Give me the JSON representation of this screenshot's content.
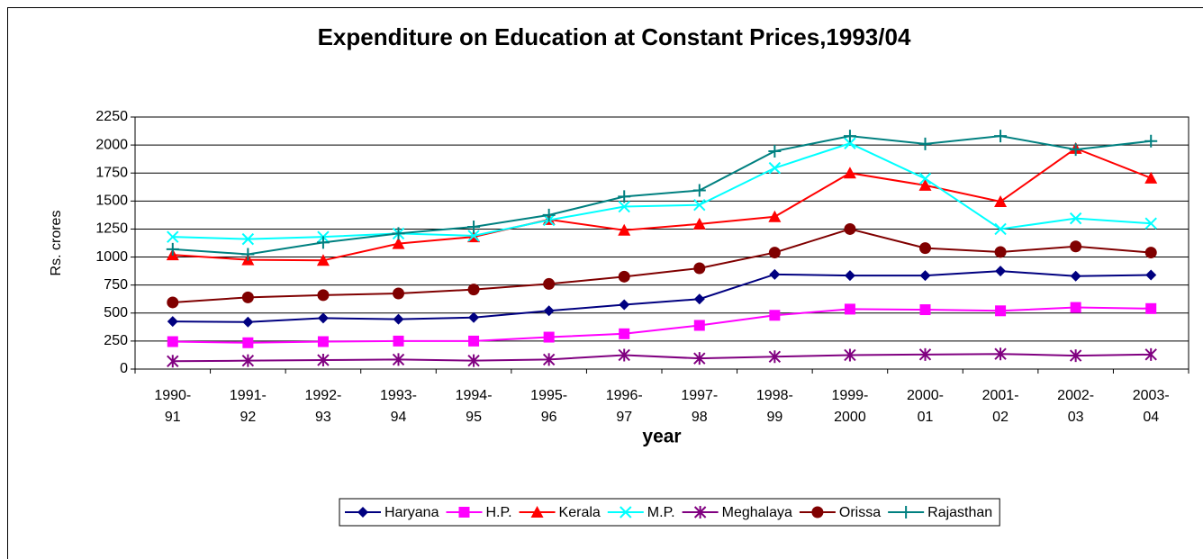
{
  "chart_data": {
    "type": "line",
    "title": "Expenditure on Education at Constant Prices,1993/04",
    "x_label": "year",
    "y_label": "Rs. crores",
    "categories": [
      "1990-91",
      "1991-92",
      "1992-93",
      "1993-94",
      "1994-95",
      "1995-96",
      "1996-97",
      "1997-98",
      "1998-99",
      "1999-2000",
      "2000-01",
      "2001-02",
      "2002-03",
      "2003-04"
    ],
    "ylim": [
      0,
      2250
    ],
    "yticks": [
      0,
      250,
      500,
      750,
      1000,
      1250,
      1500,
      1750,
      2000,
      2250
    ],
    "grid": true,
    "legend": "bottom",
    "series": [
      {
        "name": "Haryana",
        "color": "#000080",
        "marker": "diamond",
        "values": [
          425,
          420,
          455,
          445,
          460,
          520,
          575,
          625,
          845,
          835,
          835,
          875,
          830,
          840
        ]
      },
      {
        "name": "H.P.",
        "color": "#ff00ff",
        "marker": "square",
        "values": [
          245,
          235,
          245,
          250,
          250,
          285,
          315,
          390,
          480,
          535,
          530,
          520,
          550,
          540
        ]
      },
      {
        "name": "Kerala",
        "color": "#ff0000",
        "marker": "triangle",
        "values": [
          1020,
          975,
          970,
          1120,
          1180,
          1335,
          1240,
          1295,
          1360,
          1750,
          1640,
          1495,
          1970,
          1705
        ]
      },
      {
        "name": "M.P.",
        "color": "#00ffff",
        "marker": "x",
        "values": [
          1180,
          1160,
          1180,
          1210,
          1190,
          1330,
          1450,
          1465,
          1795,
          2015,
          1700,
          1250,
          1345,
          1300
        ]
      },
      {
        "name": "Meghalaya",
        "color": "#800080",
        "marker": "asterisk",
        "values": [
          70,
          75,
          80,
          85,
          75,
          85,
          125,
          95,
          110,
          125,
          130,
          135,
          120,
          130
        ]
      },
      {
        "name": "Orissa",
        "color": "#800000",
        "marker": "circle",
        "values": [
          595,
          640,
          660,
          675,
          710,
          760,
          825,
          900,
          1040,
          1250,
          1080,
          1045,
          1095,
          1040
        ]
      },
      {
        "name": "Rajasthan",
        "color": "#008080",
        "marker": "plus",
        "values": [
          1070,
          1025,
          1130,
          1210,
          1270,
          1375,
          1540,
          1595,
          1945,
          2080,
          2010,
          2080,
          1960,
          2035
        ]
      }
    ]
  }
}
